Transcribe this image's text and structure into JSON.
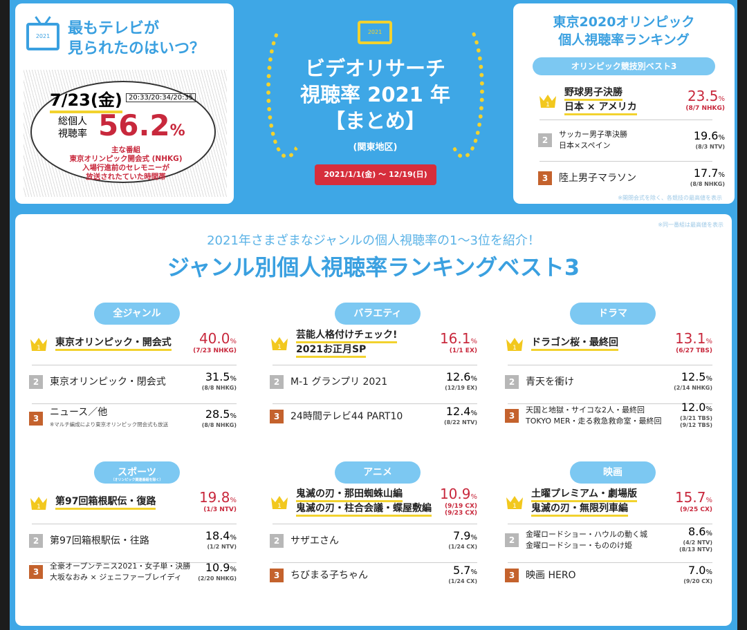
{
  "colors": {
    "background": "#3ea7e6",
    "accent_blue": "#3aa0e0",
    "red": "#c8283c",
    "gold": "#f2d22e",
    "rank2": "#b7b7b7",
    "rank3": "#c4622d"
  },
  "peak": {
    "tv_icon_year": "2021",
    "question": "最もテレビが見られたのはいつ？",
    "question_line1": "最もテレビが",
    "question_line2": "見られたのはいつ？",
    "date": "7/23(金)",
    "times": "20:33/20:34/20:35",
    "label_line1": "総個人",
    "label_line2": "視聴率",
    "rating": "56.2",
    "unit": "%",
    "note_lines": [
      "主な番組",
      "東京オリンピック開会式 (NHKG)",
      "入場行進前のセレモニーが",
      "放送されたていた時間帯"
    ]
  },
  "header": {
    "tv_icon_year": "2021",
    "title_line1": "ビデオリサーチ",
    "title_line2": "視聴率 2021 年",
    "title_line3": "【まとめ】",
    "region": "(関東地区)",
    "period": "2021/1/1(金) 〜 12/19(日)"
  },
  "olympics": {
    "title_line1": "東京2020オリンピック",
    "title_line2": "個人視聴率ランキング",
    "pill": "オリンピック競技別ベスト3",
    "items": [
      {
        "rank": "1",
        "name": [
          "野球男子決勝",
          "日本 × アメリカ"
        ],
        "rating": "23.5",
        "detail": [
          "(8/7 NHKG)"
        ]
      },
      {
        "rank": "2",
        "name": [
          "サッカー男子準決勝",
          "日本×スペイン"
        ],
        "rating": "19.6",
        "detail": [
          "(8/3 NTV)"
        ]
      },
      {
        "rank": "3",
        "name": [
          "陸上男子マラソン"
        ],
        "rating": "17.7",
        "detail": [
          "(8/8 NHKG)"
        ]
      }
    ],
    "footnote": "※開閉会式を除く、各競技の最高値を表示"
  },
  "main": {
    "footnote": "※同一番組は最高値を表示",
    "subtitle": "2021年さまざまなジャンルの個人視聴率の1〜3位を紹介！",
    "title": "ジャンル別個人視聴率ランキングベスト3",
    "genres": [
      {
        "label": "全ジャンル",
        "items": [
          {
            "rank": "1",
            "name": [
              "東京オリンピック・開会式"
            ],
            "rating": "40.0",
            "detail": [
              "(7/23 NHKG)"
            ]
          },
          {
            "rank": "2",
            "name": [
              "東京オリンピック・閉会式"
            ],
            "rating": "31.5",
            "detail": [
              "(8/8 NHKG)"
            ]
          },
          {
            "rank": "3",
            "name": [
              "ニュース／他"
            ],
            "note": "※マルチ編成により東京オリンピック閉会式も放送",
            "rating": "28.5",
            "detail": [
              "(8/8 NHKG)"
            ]
          }
        ]
      },
      {
        "label": "バラエティ",
        "items": [
          {
            "rank": "1",
            "name": [
              "芸能人格付けチェック!",
              "2021お正月SP"
            ],
            "rating": "16.1",
            "detail": [
              "(1/1 EX)"
            ]
          },
          {
            "rank": "2",
            "name": [
              "M-1 グランプリ 2021"
            ],
            "rating": "12.6",
            "detail": [
              "(12/19 EX)"
            ]
          },
          {
            "rank": "3",
            "name": [
              "24時間テレビ44 PART10"
            ],
            "rating": "12.4",
            "detail": [
              "(8/22 NTV)"
            ]
          }
        ]
      },
      {
        "label": "ドラマ",
        "items": [
          {
            "rank": "1",
            "name": [
              "ドラゴン桜・最終回"
            ],
            "rating": "13.1",
            "detail": [
              "(6/27 TBS)"
            ]
          },
          {
            "rank": "2",
            "name": [
              "青天を衝け"
            ],
            "rating": "12.5",
            "detail": [
              "(2/14 NHKG)"
            ]
          },
          {
            "rank": "3",
            "name": [
              "天国と地獄・サイコな2人・最終回",
              "TOKYO MER・走る救急救命室・最終回"
            ],
            "rating": "12.0",
            "detail": [
              "(3/21 TBS)",
              "(9/12 TBS)"
            ]
          }
        ]
      },
      {
        "label": "スポーツ",
        "sublabel": "（オリンピック関連番組を除く）",
        "items": [
          {
            "rank": "1",
            "name": [
              "第97回箱根駅伝・復路"
            ],
            "rating": "19.8",
            "detail": [
              "(1/3 NTV)"
            ]
          },
          {
            "rank": "2",
            "name": [
              "第97回箱根駅伝・往路"
            ],
            "rating": "18.4",
            "detail": [
              "(1/2 NTV)"
            ]
          },
          {
            "rank": "3",
            "name": [
              "全豪オープンテニス2021・女子単・決勝",
              "大坂なおみ × ジェニファーブレイディ"
            ],
            "rating": "10.9",
            "detail": [
              "(2/20 NHKG)"
            ]
          }
        ]
      },
      {
        "label": "アニメ",
        "items": [
          {
            "rank": "1",
            "name": [
              "鬼滅の刃・那田蜘蛛山編",
              "鬼滅の刃・柱合会議・蝶屋敷編"
            ],
            "rating": "10.9",
            "detail": [
              "(9/19 CX)",
              "(9/23 CX)"
            ]
          },
          {
            "rank": "2",
            "name": [
              "サザエさん"
            ],
            "rating": "7.9",
            "detail": [
              "(1/24 CX)"
            ]
          },
          {
            "rank": "3",
            "name": [
              "ちびまる子ちゃん"
            ],
            "rating": "5.7",
            "detail": [
              "(1/24 CX)"
            ]
          }
        ]
      },
      {
        "label": "映画",
        "items": [
          {
            "rank": "1",
            "name": [
              "土曜プレミアム・劇場版",
              "鬼滅の刃・無限列車編"
            ],
            "rating": "15.7",
            "detail": [
              "(9/25 CX)"
            ]
          },
          {
            "rank": "2",
            "name": [
              "金曜ロードショー・ハウルの動く城",
              "金曜ロードショー・もののけ姫"
            ],
            "rating": "8.6",
            "detail": [
              "(4/2 NTV)",
              "(8/13 NTV)"
            ]
          },
          {
            "rank": "3",
            "name": [
              "映画 HERO"
            ],
            "rating": "7.0",
            "detail": [
              "(9/20 CX)"
            ]
          }
        ]
      }
    ]
  }
}
